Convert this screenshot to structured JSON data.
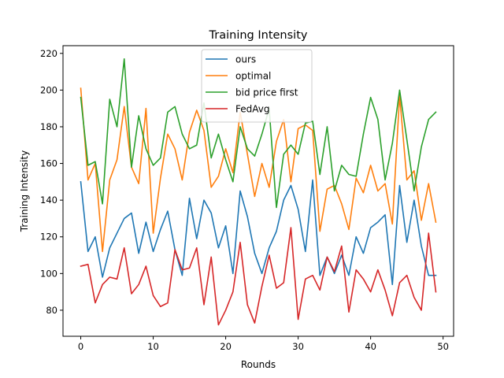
{
  "chart_data": {
    "type": "line",
    "title": "Training Intensity",
    "xlabel": "Rounds",
    "ylabel": "Training Intensity",
    "xlim": [
      -2.45,
      51.45
    ],
    "ylim": [
      65.8,
      224.2
    ],
    "xticks": [
      0,
      10,
      20,
      30,
      40,
      50
    ],
    "yticks": [
      80,
      100,
      120,
      140,
      160,
      180,
      200,
      220
    ],
    "grid": false,
    "legend_position": "top-center",
    "x": [
      0,
      1,
      2,
      3,
      4,
      5,
      6,
      7,
      8,
      9,
      10,
      11,
      12,
      13,
      14,
      15,
      16,
      17,
      18,
      19,
      20,
      21,
      22,
      23,
      24,
      25,
      26,
      27,
      28,
      29,
      30,
      31,
      32,
      33,
      34,
      35,
      36,
      37,
      38,
      39,
      40,
      41,
      42,
      43,
      44,
      45,
      46,
      47,
      48,
      49
    ],
    "series": [
      {
        "name": "ours",
        "color": "#1f77b4",
        "values": [
          150,
          112,
          120,
          98,
          114,
          122,
          130,
          133,
          111,
          128,
          112,
          124,
          134,
          113,
          99,
          141,
          119,
          140,
          133,
          114,
          126,
          100,
          145,
          131,
          111,
          100,
          114,
          123,
          140,
          148,
          135,
          112,
          151,
          99,
          109,
          100,
          110,
          99,
          120,
          111,
          125,
          128,
          132,
          94,
          148,
          117,
          140,
          115,
          99,
          99
        ]
      },
      {
        "name": "optimal",
        "color": "#ff7f0e",
        "values": [
          201,
          151,
          160,
          112,
          151,
          162,
          191,
          158,
          149,
          190,
          122,
          152,
          176,
          168,
          151,
          177,
          189,
          178,
          147,
          153,
          168,
          155,
          188,
          165,
          142,
          160,
          147,
          172,
          184,
          150,
          179,
          181,
          178,
          123,
          146,
          148,
          138,
          124,
          152,
          144,
          159,
          145,
          149,
          127,
          197,
          151,
          156,
          129,
          149,
          128
        ]
      },
      {
        "name": "bid price first",
        "color": "#2ca02c",
        "values": [
          196,
          159,
          161,
          138,
          195,
          180,
          217,
          158,
          186,
          168,
          159,
          163,
          188,
          191,
          176,
          168,
          170,
          193,
          163,
          176,
          162,
          150,
          180,
          168,
          164,
          176,
          190,
          136,
          165,
          170,
          165,
          182,
          183,
          154,
          180,
          145,
          159,
          154,
          153,
          176,
          196,
          184,
          151,
          171,
          200,
          173,
          145,
          169,
          184,
          188
        ]
      },
      {
        "name": "FedAvg",
        "color": "#d62728",
        "values": [
          104,
          105,
          84,
          94,
          98,
          97,
          114,
          89,
          94,
          104,
          88,
          82,
          84,
          113,
          102,
          103,
          114,
          83,
          109,
          72,
          80,
          90,
          117,
          83,
          73,
          93,
          110,
          92,
          95,
          125,
          75,
          97,
          99,
          91,
          109,
          101,
          115,
          79,
          102,
          97,
          90,
          102,
          91,
          77,
          95,
          99,
          87,
          80,
          122,
          90
        ]
      }
    ]
  }
}
